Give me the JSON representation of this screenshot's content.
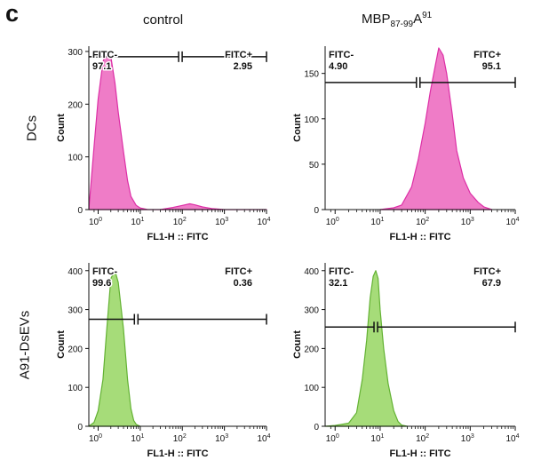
{
  "figure": {
    "panel_letter": "c",
    "columns": {
      "control": "control",
      "treated": "MBP87-99A91"
    },
    "treated_parts": {
      "base": "MBP",
      "sub": "87-99",
      "mid": "A",
      "sup": "91"
    },
    "rows": {
      "dcs": "DCs",
      "evs": "A91-DsEVs"
    }
  },
  "colors": {
    "pink_fill": "#ef7cc7",
    "pink_stroke": "#dd2fa6",
    "green_fill": "#a6dc79",
    "green_stroke": "#63b233"
  },
  "chart_data": [
    {
      "type": "area",
      "row": "DCs",
      "column": "control",
      "color": "pink",
      "xlabel": "FL1-H :: FITC",
      "ylabel": "Count",
      "xscale": "log",
      "xlim": [
        0.6,
        10000
      ],
      "ylim": [
        0,
        310
      ],
      "xticks": [
        "10^0",
        "10^1",
        "10^2",
        "10^3",
        "10^4"
      ],
      "yticks": [
        0,
        100,
        200,
        300
      ],
      "gate_labels": {
        "neg_name": "FITC-",
        "neg_value": "97.1",
        "pos_name": "FITC+",
        "pos_value": "2.95"
      },
      "gate_divider": 90,
      "gate_level": 290,
      "x": [
        0.6,
        0.8,
        1,
        1.3,
        1.6,
        2,
        2.5,
        3,
        4,
        5,
        6,
        8,
        10,
        15,
        30,
        60,
        100,
        150,
        200,
        300,
        500,
        1000,
        10000
      ],
      "y": [
        0,
        120,
        210,
        280,
        300,
        290,
        240,
        185,
        110,
        55,
        25,
        8,
        3,
        0,
        0,
        4,
        8,
        11,
        9,
        5,
        2,
        0,
        0
      ]
    },
    {
      "type": "area",
      "row": "DCs",
      "column": "MBP87-99A91",
      "color": "pink",
      "xlabel": "FL1-H :: FITC",
      "ylabel": "Count",
      "xscale": "log",
      "xlim": [
        0.6,
        10000
      ],
      "ylim": [
        0,
        180
      ],
      "xticks": [
        "10^0",
        "10^1",
        "10^2",
        "10^3",
        "10^4"
      ],
      "yticks": [
        0,
        50,
        100,
        150
      ],
      "gate_labels": {
        "neg_name": "FITC-",
        "neg_value": "4.90",
        "pos_name": "FITC+",
        "pos_value": "95.1"
      },
      "gate_divider": 70,
      "gate_level": 140,
      "x": [
        10,
        20,
        30,
        50,
        70,
        100,
        130,
        170,
        200,
        250,
        300,
        400,
        500,
        700,
        1000,
        1500,
        2000,
        3000
      ],
      "y": [
        0,
        2,
        5,
        25,
        55,
        95,
        130,
        160,
        178,
        170,
        150,
        105,
        65,
        35,
        18,
        8,
        3,
        0
      ]
    },
    {
      "type": "area",
      "row": "A91-DsEVs",
      "column": "control",
      "color": "green",
      "xlabel": "FL1-H :: FITC",
      "ylabel": "Count",
      "xscale": "log",
      "xlim": [
        0.6,
        10000
      ],
      "ylim": [
        0,
        420
      ],
      "xticks": [
        "10^0",
        "10^1",
        "10^2",
        "10^3",
        "10^4"
      ],
      "yticks": [
        0,
        100,
        200,
        300,
        400
      ],
      "gate_labels": {
        "neg_name": "FITC-",
        "neg_value": "99.6",
        "pos_name": "FITC+",
        "pos_value": "0.36"
      },
      "gate_divider": 8,
      "gate_level": 275,
      "x": [
        0.6,
        0.8,
        1,
        1.3,
        1.6,
        2,
        2.5,
        3,
        4,
        5,
        6,
        7,
        8,
        9,
        10
      ],
      "y": [
        0,
        10,
        40,
        120,
        250,
        380,
        400,
        370,
        250,
        120,
        45,
        15,
        5,
        2,
        0
      ]
    },
    {
      "type": "area",
      "row": "A91-DsEVs",
      "column": "MBP87-99A91",
      "color": "green",
      "xlabel": "FL1-H :: FITC",
      "ylabel": "Count",
      "xscale": "log",
      "xlim": [
        0.6,
        10000
      ],
      "ylim": [
        0,
        420
      ],
      "xticks": [
        "10^0",
        "10^1",
        "10^2",
        "10^3",
        "10^4"
      ],
      "yticks": [
        0,
        100,
        200,
        300,
        400
      ],
      "gate_labels": {
        "neg_name": "FITC-",
        "neg_value": "32.1",
        "pos_name": "FITC+",
        "pos_value": "67.9"
      },
      "gate_divider": 8,
      "gate_level": 255,
      "x": [
        0.6,
        1,
        2,
        3,
        4,
        5,
        6,
        7,
        8,
        9,
        10,
        12,
        15,
        20,
        25,
        30,
        40
      ],
      "y": [
        0,
        2,
        8,
        35,
        120,
        220,
        330,
        385,
        400,
        380,
        300,
        200,
        110,
        40,
        12,
        3,
        0
      ]
    }
  ]
}
